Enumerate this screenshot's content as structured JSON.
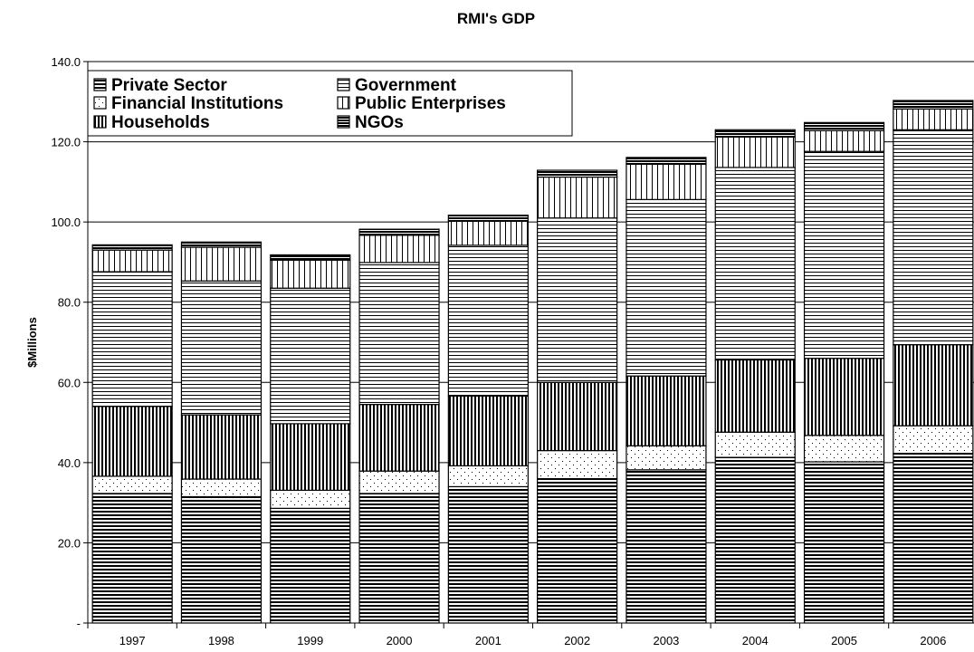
{
  "chart_data": {
    "type": "bar",
    "stacked": true,
    "title": "RMI's GDP",
    "xlabel": "",
    "ylabel": "$Millions",
    "ylim": [
      0,
      140
    ],
    "y_ticks": [
      0,
      20,
      40,
      60,
      80,
      100,
      120,
      140
    ],
    "y_tick_labels": [
      "-",
      "20.0",
      "40.0",
      "60.0",
      "80.0",
      "100.0",
      "120.0",
      "140.0"
    ],
    "grid": "horizontal major gridlines",
    "legend_position": "top-left",
    "categories": [
      "1997",
      "1998",
      "1999",
      "2000",
      "2001",
      "2002",
      "2003",
      "2004",
      "2005",
      "2006"
    ],
    "series": [
      {
        "name": "Private Sector",
        "pattern": "dense-horizontal",
        "values": [
          32.3,
          31.5,
          28.6,
          32.3,
          34.0,
          36.0,
          38.2,
          41.3,
          40.2,
          42.3
        ]
      },
      {
        "name": "Financial Institutions",
        "pattern": "dots",
        "values": [
          4.3,
          4.4,
          4.5,
          5.6,
          5.2,
          7.0,
          6.0,
          6.3,
          6.6,
          6.9
        ]
      },
      {
        "name": "Households",
        "pattern": "dense-vertical",
        "values": [
          17.4,
          16.0,
          16.6,
          16.6,
          17.4,
          17.0,
          17.4,
          18.0,
          19.2,
          20.2
        ]
      },
      {
        "name": "Government",
        "pattern": "horizontal",
        "values": [
          33.6,
          33.4,
          33.8,
          35.4,
          37.6,
          41.0,
          44.0,
          48.0,
          51.6,
          53.6
        ]
      },
      {
        "name": "Public Enterprises",
        "pattern": "vertical",
        "values": [
          5.4,
          8.4,
          7.0,
          6.8,
          6.0,
          10.2,
          8.8,
          7.6,
          5.2,
          5.2
        ]
      },
      {
        "name": "NGOs",
        "pattern": "heavy-horizontal",
        "values": [
          1.3,
          1.3,
          1.3,
          1.5,
          1.5,
          1.7,
          1.7,
          1.8,
          2.0,
          2.1
        ]
      }
    ]
  }
}
